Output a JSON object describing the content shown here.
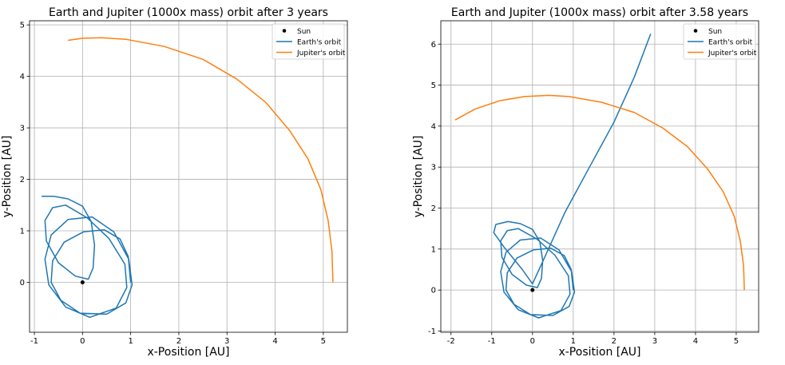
{
  "chart_data": [
    {
      "type": "line",
      "title": "Earth and Jupiter (1000x mass) orbit after 3 years",
      "xlabel": "x-Position [AU]",
      "ylabel": "y-Position [AU]",
      "xlim": [
        -1.1,
        5.5
      ],
      "ylim": [
        -0.97,
        5.08
      ],
      "xticks": [
        -1,
        0,
        1,
        2,
        3,
        4,
        5
      ],
      "yticks": [
        0,
        1,
        2,
        3,
        4,
        5
      ],
      "grid": true,
      "legend_position": "top-right",
      "legend": [
        "Sun",
        "Earth's orbit",
        "Jupiter's orbit"
      ],
      "colors": {
        "sun": "#000000",
        "earth": "#1f77b4",
        "jupiter": "#ff7f0e"
      },
      "sun": {
        "x": 0,
        "y": 0
      },
      "series": [
        {
          "name": "Earth's orbit",
          "points": [
            [
              1.0,
              0.0
            ],
            [
              0.95,
              0.5
            ],
            [
              0.78,
              0.84
            ],
            [
              0.45,
              1.02
            ],
            [
              0.02,
              0.98
            ],
            [
              -0.38,
              0.78
            ],
            [
              -0.62,
              0.42
            ],
            [
              -0.65,
              0.0
            ],
            [
              -0.45,
              -0.35
            ],
            [
              -0.05,
              -0.6
            ],
            [
              0.5,
              -0.62
            ],
            [
              0.9,
              -0.4
            ],
            [
              1.03,
              -0.05
            ],
            [
              0.96,
              0.45
            ],
            [
              0.65,
              0.98
            ],
            [
              0.2,
              1.27
            ],
            [
              -0.3,
              1.22
            ],
            [
              -0.65,
              0.92
            ],
            [
              -0.78,
              0.45
            ],
            [
              -0.7,
              -0.05
            ],
            [
              -0.35,
              -0.48
            ],
            [
              0.15,
              -0.68
            ],
            [
              0.7,
              -0.5
            ],
            [
              0.92,
              -0.1
            ],
            [
              0.88,
              0.35
            ],
            [
              0.55,
              0.85
            ],
            [
              0.1,
              1.25
            ],
            [
              -0.35,
              1.5
            ],
            [
              -0.62,
              1.45
            ],
            [
              -0.78,
              1.2
            ],
            [
              -0.75,
              0.8
            ],
            [
              -0.5,
              0.38
            ],
            [
              -0.15,
              0.12
            ],
            [
              0.12,
              0.06
            ],
            [
              0.22,
              0.28
            ],
            [
              0.25,
              0.72
            ],
            [
              0.18,
              1.18
            ],
            [
              0.0,
              1.48
            ],
            [
              -0.3,
              1.62
            ],
            [
              -0.6,
              1.67
            ],
            [
              -0.85,
              1.67
            ]
          ]
        },
        {
          "name": "Jupiter's orbit",
          "points": [
            [
              5.2,
              0.0
            ],
            [
              5.18,
              0.6
            ],
            [
              5.1,
              1.2
            ],
            [
              4.95,
              1.8
            ],
            [
              4.68,
              2.4
            ],
            [
              4.3,
              2.95
            ],
            [
              3.8,
              3.5
            ],
            [
              3.2,
              3.95
            ],
            [
              2.5,
              4.33
            ],
            [
              1.7,
              4.58
            ],
            [
              0.9,
              4.72
            ],
            [
              0.4,
              4.75
            ],
            [
              0.0,
              4.74
            ],
            [
              -0.3,
              4.7
            ]
          ]
        }
      ]
    },
    {
      "type": "line",
      "title": "Earth and Jupiter (1000x mass) orbit after 3.58 years",
      "xlabel": "x-Position [AU]",
      "ylabel": "y-Position [AU]",
      "xlim": [
        -2.25,
        5.55
      ],
      "ylim": [
        -1.03,
        6.57
      ],
      "xticks": [
        -2,
        -1,
        0,
        1,
        2,
        3,
        4,
        5
      ],
      "yticks": [
        -1,
        0,
        1,
        2,
        3,
        4,
        5,
        6
      ],
      "grid": true,
      "legend_position": "top-right",
      "legend": [
        "Sun",
        "Earth's orbit",
        "Jupiter's orbit"
      ],
      "colors": {
        "sun": "#000000",
        "earth": "#1f77b4",
        "jupiter": "#ff7f0e"
      },
      "sun": {
        "x": 0,
        "y": 0
      },
      "series": [
        {
          "name": "Earth's orbit",
          "points": [
            [
              1.0,
              0.0
            ],
            [
              0.95,
              0.5
            ],
            [
              0.78,
              0.84
            ],
            [
              0.45,
              1.02
            ],
            [
              0.02,
              0.98
            ],
            [
              -0.38,
              0.78
            ],
            [
              -0.62,
              0.42
            ],
            [
              -0.65,
              0.0
            ],
            [
              -0.45,
              -0.35
            ],
            [
              -0.05,
              -0.6
            ],
            [
              0.5,
              -0.62
            ],
            [
              0.9,
              -0.4
            ],
            [
              1.03,
              -0.05
            ],
            [
              0.96,
              0.45
            ],
            [
              0.65,
              0.98
            ],
            [
              0.2,
              1.27
            ],
            [
              -0.3,
              1.22
            ],
            [
              -0.65,
              0.92
            ],
            [
              -0.78,
              0.45
            ],
            [
              -0.7,
              -0.05
            ],
            [
              -0.35,
              -0.48
            ],
            [
              0.15,
              -0.68
            ],
            [
              0.7,
              -0.5
            ],
            [
              0.92,
              -0.1
            ],
            [
              0.88,
              0.35
            ],
            [
              0.55,
              0.85
            ],
            [
              0.1,
              1.25
            ],
            [
              -0.35,
              1.5
            ],
            [
              -0.62,
              1.45
            ],
            [
              -0.78,
              1.2
            ],
            [
              -0.75,
              0.8
            ],
            [
              -0.5,
              0.38
            ],
            [
              -0.15,
              0.12
            ],
            [
              0.12,
              0.06
            ],
            [
              0.22,
              0.28
            ],
            [
              0.25,
              0.72
            ],
            [
              0.18,
              1.18
            ],
            [
              0.0,
              1.48
            ],
            [
              -0.3,
              1.62
            ],
            [
              -0.6,
              1.67
            ],
            [
              -0.9,
              1.6
            ],
            [
              -0.95,
              1.4
            ],
            [
              -0.7,
              1.05
            ],
            [
              -0.25,
              0.5
            ],
            [
              0.0,
              0.15
            ],
            [
              0.3,
              0.8
            ],
            [
              0.8,
              1.9
            ],
            [
              1.4,
              3.0
            ],
            [
              2.0,
              4.1
            ],
            [
              2.5,
              5.2
            ],
            [
              2.9,
              6.25
            ]
          ]
        },
        {
          "name": "Jupiter's orbit",
          "points": [
            [
              5.2,
              0.0
            ],
            [
              5.18,
              0.6
            ],
            [
              5.1,
              1.2
            ],
            [
              4.95,
              1.8
            ],
            [
              4.68,
              2.4
            ],
            [
              4.3,
              2.95
            ],
            [
              3.8,
              3.5
            ],
            [
              3.2,
              3.95
            ],
            [
              2.5,
              4.33
            ],
            [
              1.7,
              4.58
            ],
            [
              0.9,
              4.72
            ],
            [
              0.4,
              4.75
            ],
            [
              -0.2,
              4.72
            ],
            [
              -0.8,
              4.62
            ],
            [
              -1.4,
              4.42
            ],
            [
              -1.9,
              4.15
            ]
          ]
        }
      ]
    }
  ]
}
